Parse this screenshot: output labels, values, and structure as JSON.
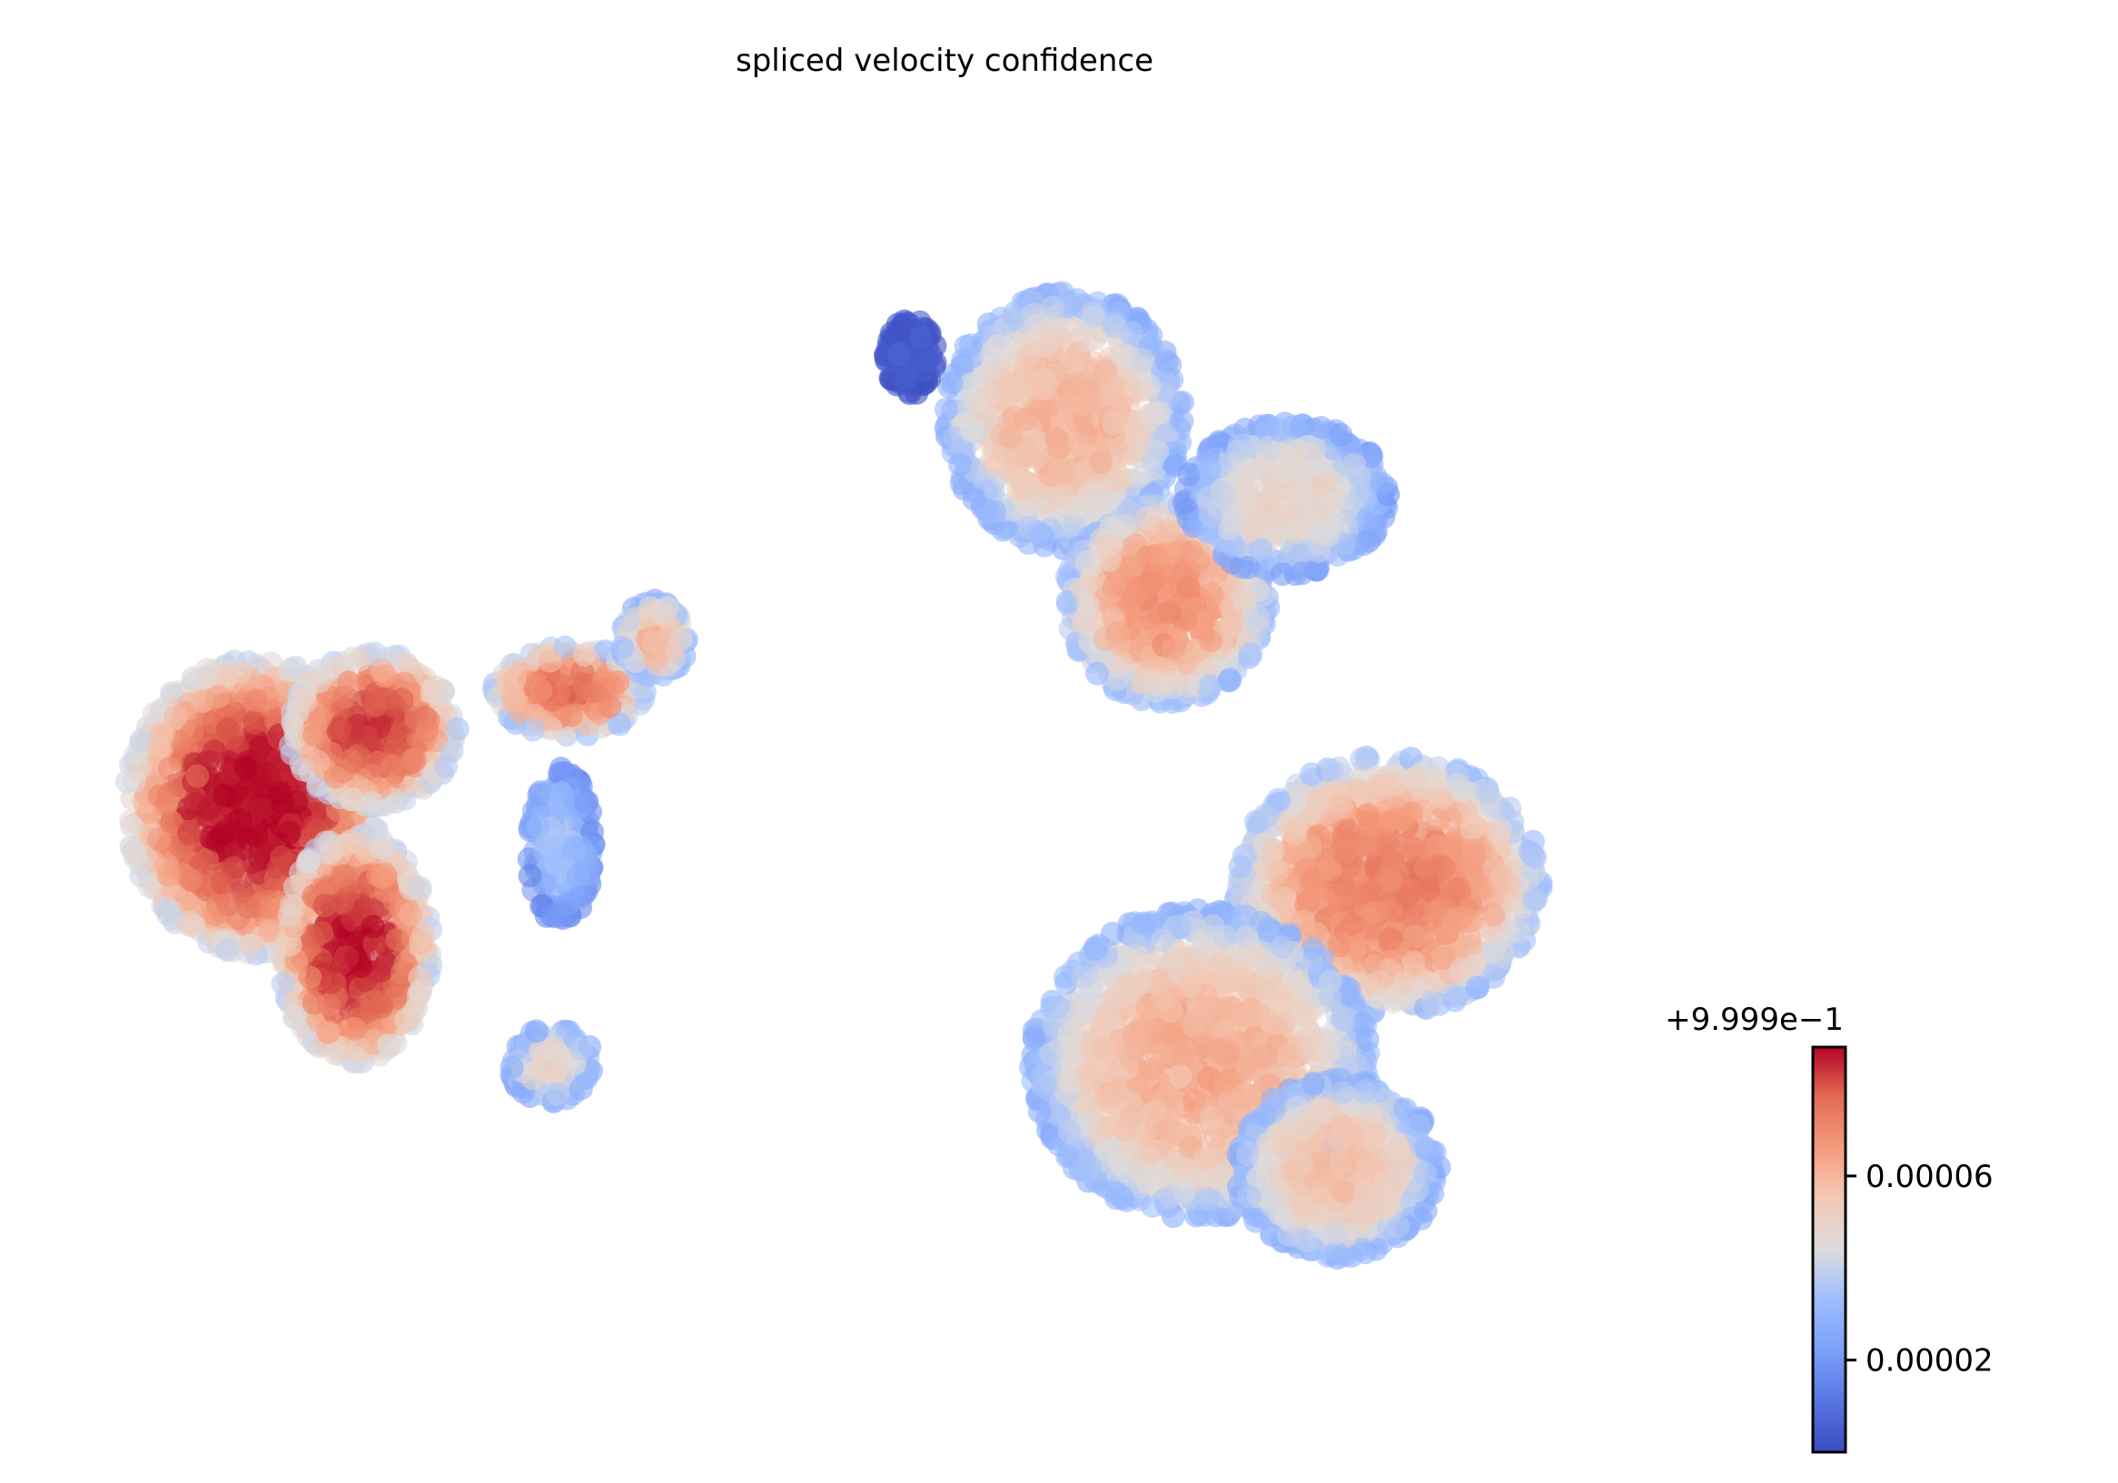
{
  "chart_data": {
    "type": "scatter",
    "title": "spliced velocity confidence",
    "xlabel": "",
    "ylabel": "",
    "grid": false,
    "axes_visible": false,
    "colormap": "coolwarm",
    "colorbar": {
      "offset_label": "+9.999e−1",
      "ticks": [
        {
          "value": 2e-05,
          "label": "0.00002"
        },
        {
          "value": 6e-05,
          "label": "0.00006"
        }
      ],
      "range": [
        0.0,
        8.8e-05
      ],
      "placement": "bottom-right"
    },
    "colors": {
      "low": "#3b4cc0",
      "mid": "#dddcdc",
      "high": "#b40426"
    },
    "clusters": [
      {
        "cx": 0.095,
        "cy": 0.52,
        "rx": 0.075,
        "ry": 0.115,
        "value": 8.8e-05
      },
      {
        "cx": 0.155,
        "cy": 0.63,
        "rx": 0.045,
        "ry": 0.09,
        "value": 8.6e-05
      },
      {
        "cx": 0.165,
        "cy": 0.46,
        "rx": 0.05,
        "ry": 0.06,
        "value": 8.2e-05
      },
      {
        "cx": 0.28,
        "cy": 0.43,
        "rx": 0.045,
        "ry": 0.035,
        "value": 7.6e-05
      },
      {
        "cx": 0.33,
        "cy": 0.39,
        "rx": 0.02,
        "ry": 0.03,
        "value": 6.2e-05
      },
      {
        "cx": 0.275,
        "cy": 0.55,
        "rx": 0.02,
        "ry": 0.06,
        "value": 3.5e-05
      },
      {
        "cx": 0.27,
        "cy": 0.72,
        "rx": 0.025,
        "ry": 0.03,
        "value": 5e-05
      },
      {
        "cx": 0.57,
        "cy": 0.22,
        "rx": 0.07,
        "ry": 0.1,
        "value": 6e-05
      },
      {
        "cx": 0.63,
        "cy": 0.36,
        "rx": 0.06,
        "ry": 0.08,
        "value": 6.8e-05
      },
      {
        "cx": 0.7,
        "cy": 0.28,
        "rx": 0.06,
        "ry": 0.06,
        "value": 5e-05
      },
      {
        "cx": 0.76,
        "cy": 0.58,
        "rx": 0.09,
        "ry": 0.1,
        "value": 7.2e-05
      },
      {
        "cx": 0.65,
        "cy": 0.72,
        "rx": 0.1,
        "ry": 0.12,
        "value": 6.2e-05
      },
      {
        "cx": 0.73,
        "cy": 0.8,
        "rx": 0.06,
        "ry": 0.07,
        "value": 5.8e-05
      },
      {
        "cx": 0.48,
        "cy": 0.17,
        "rx": 0.015,
        "ry": 0.03,
        "value": 5e-06
      }
    ]
  }
}
